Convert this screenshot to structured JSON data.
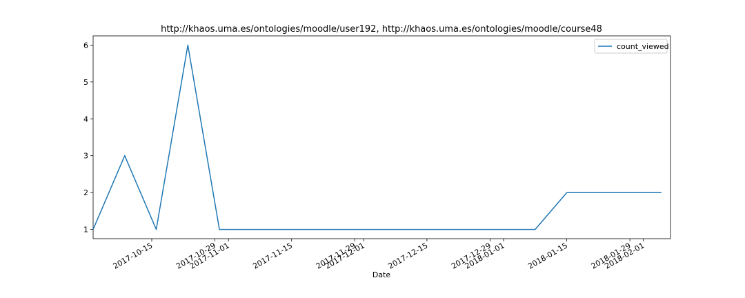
{
  "chart_data": {
    "type": "line",
    "title": "http://khaos.uma.es/ontologies/moodle/user192, http://khaos.uma.es/ontologies/moodle/course48",
    "xlabel": "Date",
    "ylabel": "",
    "x_type": "date",
    "xlim": [
      "2017-10-02",
      "2018-02-07"
    ],
    "ylim": [
      0.75,
      6.25
    ],
    "yticks": [
      1,
      2,
      3,
      4,
      5,
      6
    ],
    "xticks": [
      "2017-10-15",
      "2017-10-29",
      "2017-11-01",
      "2017-11-15",
      "2017-11-29",
      "2017-12-01",
      "2017-12-15",
      "2017-12-29",
      "2018-01-01",
      "2018-01-15",
      "2018-01-29",
      "2018-02-01"
    ],
    "legend": {
      "position": "top-right",
      "entries": [
        "count_viewed"
      ]
    },
    "grid": false,
    "series": [
      {
        "name": "count_viewed",
        "color": "#1f77b4",
        "x": [
          "2017-10-02",
          "2017-10-09",
          "2017-10-16",
          "2017-10-23",
          "2017-10-30",
          "2017-11-06",
          "2017-11-13",
          "2017-11-20",
          "2017-11-27",
          "2017-12-04",
          "2017-12-11",
          "2017-12-18",
          "2017-12-25",
          "2018-01-01",
          "2018-01-08",
          "2018-01-15",
          "2018-01-22",
          "2018-01-29",
          "2018-02-05"
        ],
        "values": [
          1,
          3,
          1,
          6,
          1,
          1,
          1,
          1,
          1,
          1,
          1,
          1,
          1,
          1,
          1,
          2,
          2,
          2,
          2
        ]
      }
    ]
  }
}
